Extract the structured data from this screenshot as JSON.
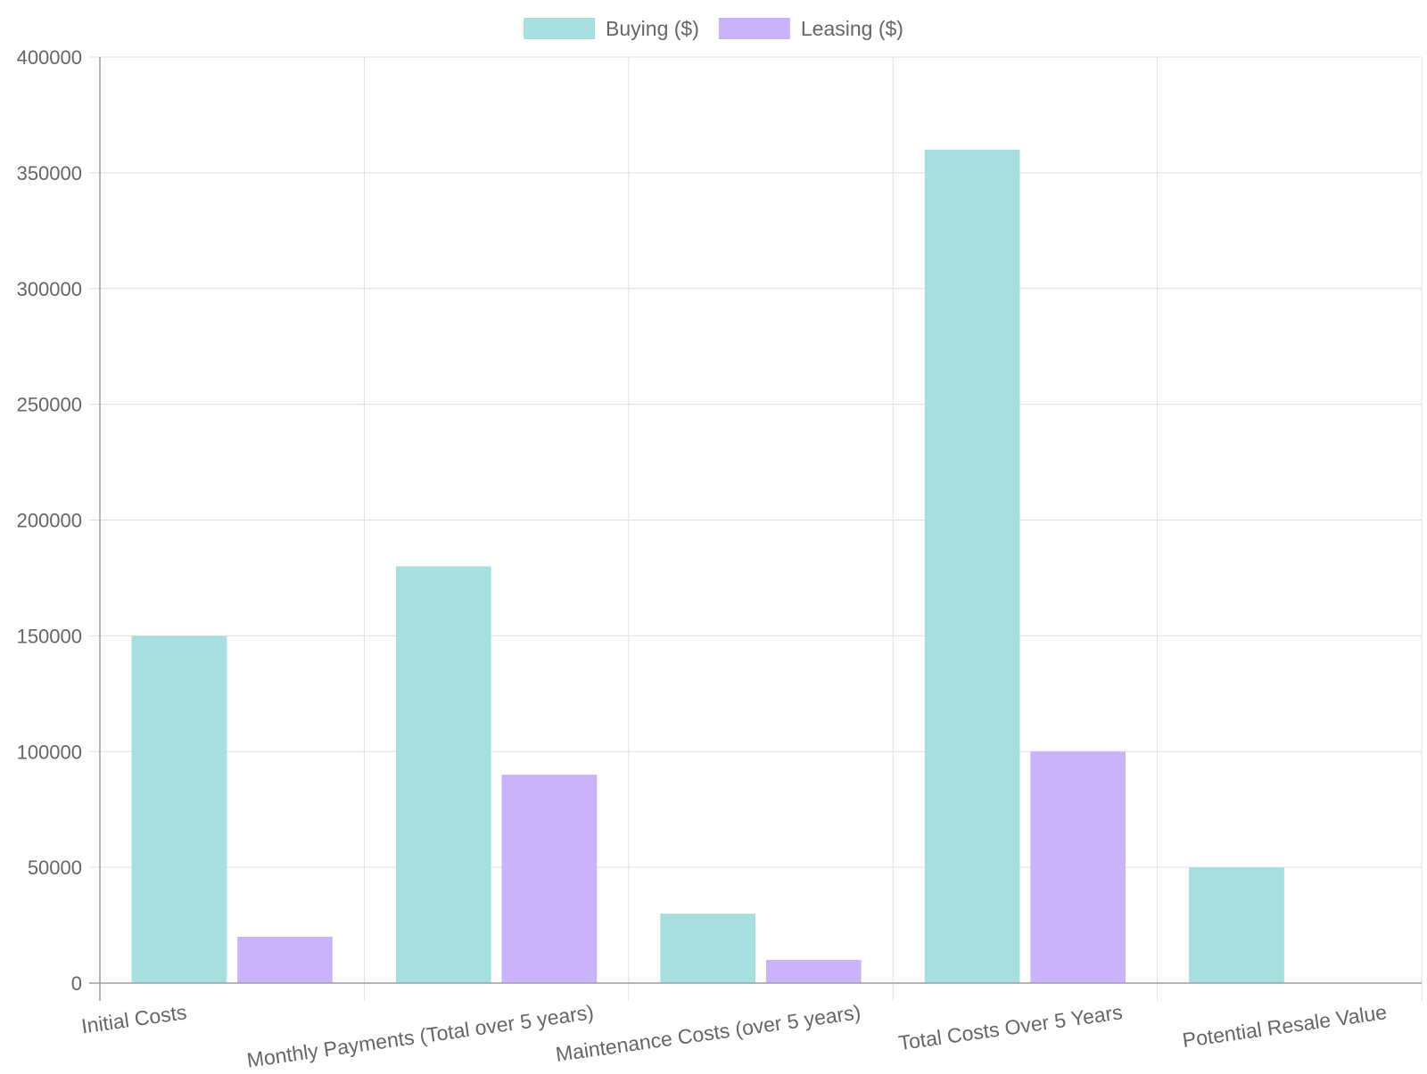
{
  "chart_data": {
    "type": "bar",
    "categories": [
      "Initial Costs",
      "Monthly Payments (Total over 5 years)",
      "Maintenance Costs (over 5 years)",
      "Total Costs Over 5 Years",
      "Potential Resale Value"
    ],
    "series": [
      {
        "name": "Buying ($)",
        "color": "#a7dfdf",
        "values": [
          150000,
          180000,
          30000,
          360000,
          50000
        ]
      },
      {
        "name": "Leasing ($)",
        "color": "#cbb3fb",
        "values": [
          20000,
          90000,
          10000,
          100000,
          0
        ]
      }
    ],
    "ylim": [
      0,
      400000
    ],
    "y_ticks": [
      "0",
      "50000",
      "100000",
      "150000",
      "200000",
      "250000",
      "300000",
      "350000",
      "400000"
    ],
    "grid": true,
    "legend_position": "top-center",
    "colors": {
      "grid": "#e0e0e0",
      "axis": "#9e9e9e",
      "text": "#666666"
    }
  }
}
